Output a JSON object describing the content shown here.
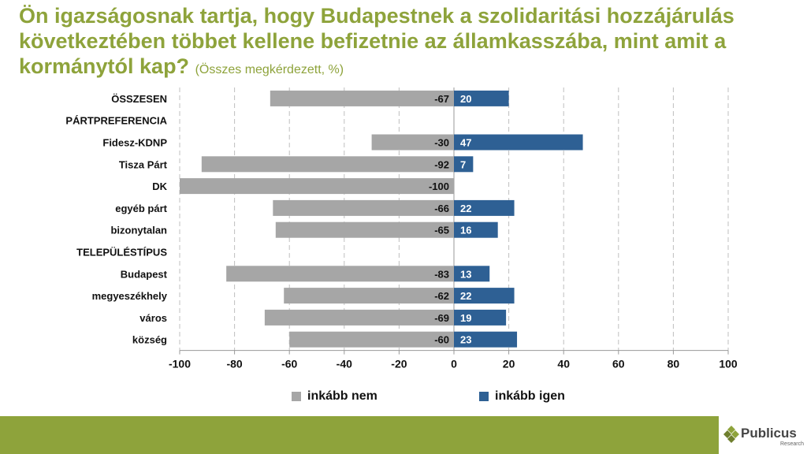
{
  "header": {
    "title": "Ön igazságosnak tartja, hogy Budapestnek a szolidaritási hozzájárulás következtében többet kellene befizetnie az államkasszába, mint amit a kormánytól kap?",
    "subtitle": "(Összes megkérdezett, %)"
  },
  "colors": {
    "no": "#a6a6a6",
    "yes": "#2e6094",
    "accent": "#8ea33b"
  },
  "chart_data": {
    "type": "bar",
    "orientation": "horizontal",
    "title": "Ön igazságosnak tartja, hogy Budapestnek a szolidaritási hozzájárulás következtében többet kellene befizetnie az államkasszába, mint amit a kormánytól kap?",
    "xlim": [
      -100,
      100
    ],
    "xticks": [
      -100,
      -80,
      -60,
      -40,
      -20,
      0,
      20,
      40,
      60,
      80,
      100
    ],
    "grid": true,
    "legend_position": "bottom",
    "categories": [
      "ÖSSZESEN",
      "PÁRTPREFERENCIA",
      "Fidesz-KDNP",
      "Tisza Párt",
      "DK",
      "egyéb párt",
      "bizonytalan",
      "TELEPÜLÉSTÍPUS",
      "Budapest",
      "megyeszékhely",
      "város",
      "község"
    ],
    "series": [
      {
        "name": "inkább nem",
        "values": [
          -67,
          null,
          -30,
          -92,
          -100,
          -66,
          -65,
          null,
          -83,
          -62,
          -69,
          -60
        ]
      },
      {
        "name": "inkább igen",
        "values": [
          20,
          null,
          47,
          7,
          null,
          22,
          16,
          null,
          13,
          22,
          19,
          23
        ]
      }
    ]
  },
  "legend": {
    "no_label": "inkább nem",
    "yes_label": "inkább igen"
  },
  "logo": {
    "name": "Publicus",
    "sub": "Research"
  }
}
